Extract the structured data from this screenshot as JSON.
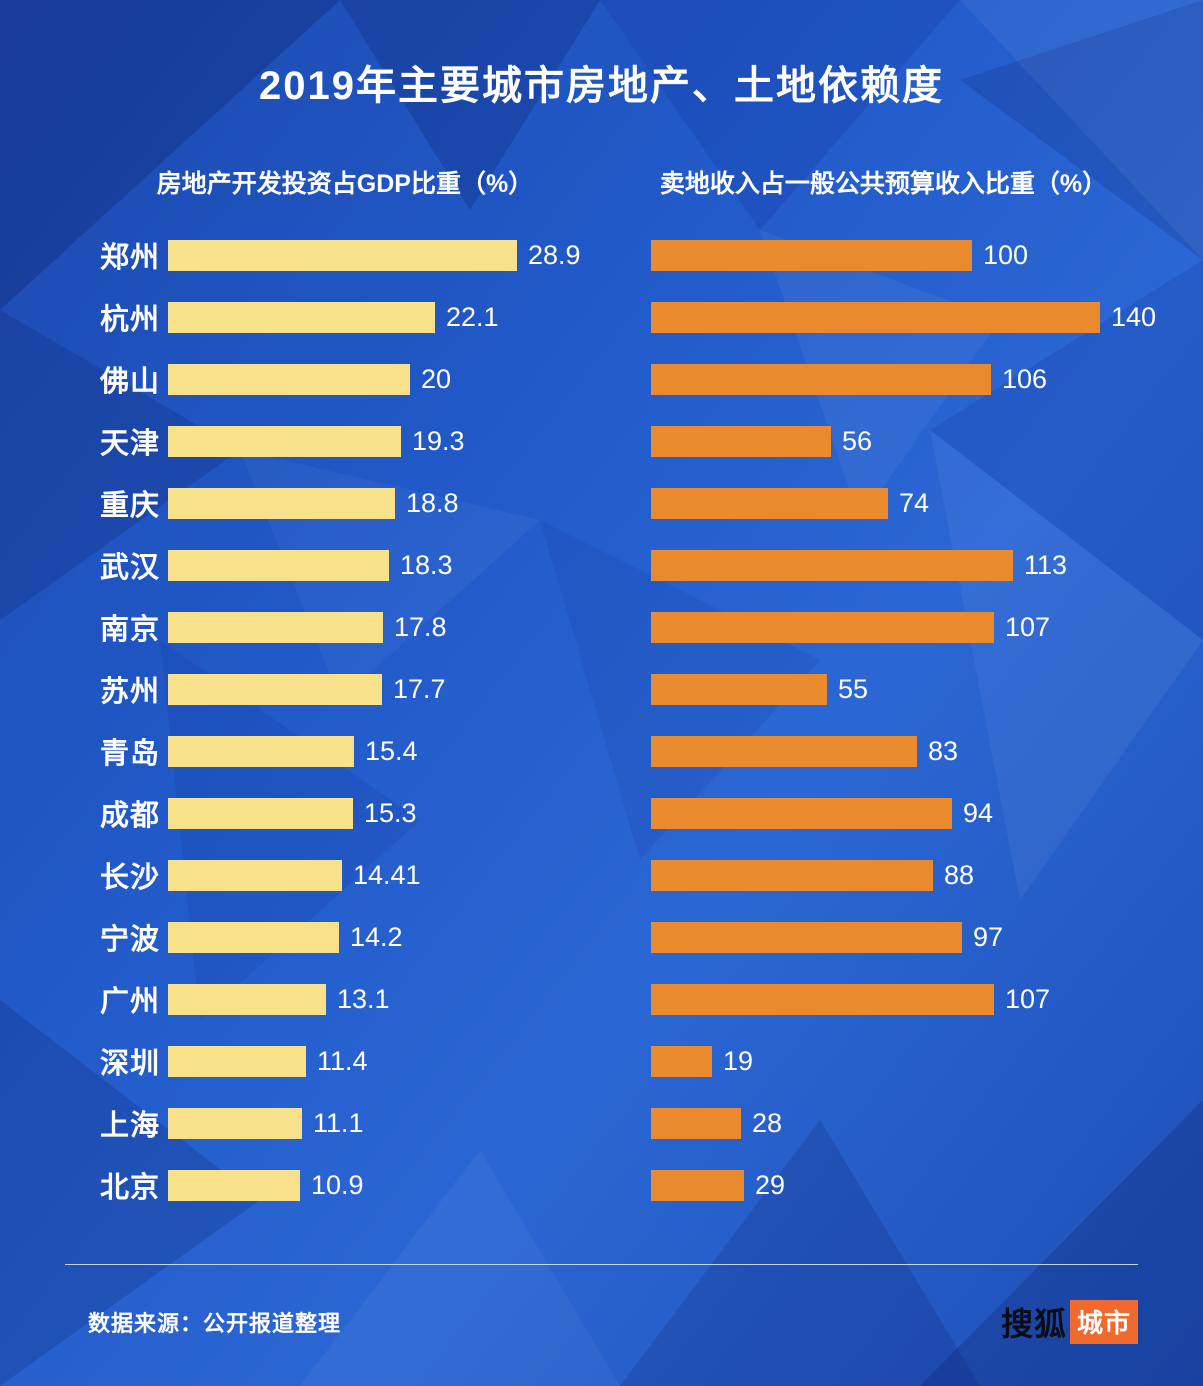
{
  "title": "2019年主要城市房地产、土地依赖度",
  "chart_data": {
    "type": "bar",
    "orientation": "horizontal",
    "legend_position": "column-headers",
    "grid": false,
    "categories": [
      "郑州",
      "杭州",
      "佛山",
      "天津",
      "重庆",
      "武汉",
      "南京",
      "苏州",
      "青岛",
      "成都",
      "长沙",
      "宁波",
      "广州",
      "深圳",
      "上海",
      "北京"
    ],
    "series": [
      {
        "name": "房地产开发投资占GDP比重（%）",
        "color": "#f8e18b",
        "axis_max": 28.9,
        "values": [
          28.9,
          22.1,
          20,
          19.3,
          18.8,
          18.3,
          17.8,
          17.7,
          15.4,
          15.3,
          14.41,
          14.2,
          13.1,
          11.4,
          11.1,
          10.9
        ]
      },
      {
        "name": "卖地收入占一般公共预算收入比重（%）",
        "color": "#e88a2d",
        "axis_max": 140,
        "values": [
          100,
          140,
          106,
          56,
          74,
          113,
          107,
          55,
          83,
          94,
          88,
          97,
          107,
          19,
          28,
          29
        ]
      }
    ]
  },
  "footer": {
    "source": "数据来源：公开报道整理",
    "logo_text": "搜狐",
    "logo_badge": "城市",
    "logo_badge_color": "#f0692e"
  },
  "colors": {
    "background_blue": "#2159c8",
    "title_text": "#ffffff",
    "left_bar": "#f8e18b",
    "right_bar": "#e88a2d"
  }
}
